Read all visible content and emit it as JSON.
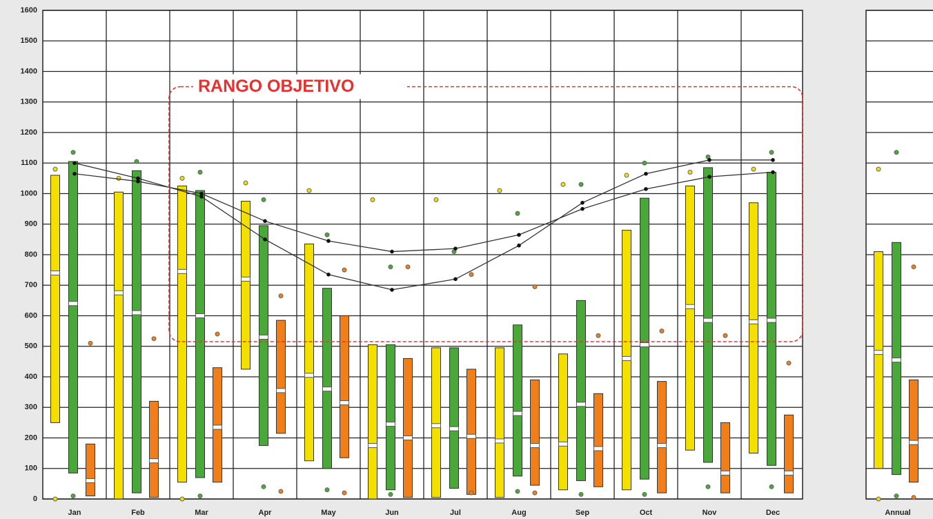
{
  "chart_data": [
    {
      "type": "box",
      "categories": [
        "Jan",
        "Feb",
        "Mar",
        "Apr",
        "May",
        "Jun",
        "Jul",
        "Aug",
        "Sep",
        "Oct",
        "Nov",
        "Dec"
      ],
      "ylim": [
        0,
        1600
      ],
      "yticks": [
        0,
        100,
        200,
        300,
        400,
        500,
        600,
        700,
        800,
        900,
        1000,
        1100,
        1200,
        1300,
        1400,
        1500,
        1600
      ],
      "grid": true,
      "series": [
        {
          "color": "#f4e000",
          "low": [
            250,
            0,
            55,
            425,
            125,
            0,
            5,
            5,
            30,
            30,
            160,
            150
          ],
          "high": [
            1060,
            1005,
            1025,
            975,
            835,
            505,
            495,
            495,
            475,
            880,
            1025,
            970
          ],
          "median": [
            740,
            675,
            745,
            720,
            405,
            175,
            240,
            190,
            180,
            460,
            630,
            580
          ],
          "outlier_high": [
            1080,
            1050,
            1050,
            1035,
            1010,
            980,
            980,
            1010,
            1030,
            1060,
            1070,
            1080
          ],
          "outlier_low": [
            0,
            null,
            0,
            null,
            null,
            null,
            null,
            null,
            null,
            null,
            null,
            null
          ]
        },
        {
          "color": "#4aa83a",
          "low": [
            85,
            20,
            70,
            175,
            100,
            30,
            35,
            75,
            60,
            65,
            120,
            110
          ],
          "high": [
            1105,
            1075,
            1010,
            895,
            690,
            505,
            495,
            570,
            650,
            985,
            1085,
            1070
          ],
          "median": [
            640,
            610,
            600,
            530,
            360,
            245,
            230,
            280,
            310,
            505,
            585,
            585
          ],
          "outlier_high": [
            1135,
            1105,
            1070,
            980,
            865,
            760,
            810,
            935,
            1030,
            1100,
            1120,
            1135
          ],
          "outlier_low": [
            10,
            null,
            10,
            40,
            30,
            15,
            null,
            25,
            15,
            15,
            40,
            40
          ]
        },
        {
          "color": "#f07f1a",
          "low": [
            10,
            5,
            55,
            215,
            135,
            5,
            15,
            45,
            40,
            20,
            20,
            20
          ],
          "high": [
            180,
            320,
            430,
            585,
            600,
            460,
            425,
            390,
            345,
            385,
            250,
            275
          ],
          "median": [
            60,
            125,
            235,
            355,
            315,
            200,
            205,
            175,
            165,
            175,
            85,
            85
          ],
          "outlier_high": [
            510,
            525,
            540,
            665,
            750,
            760,
            735,
            695,
            535,
            550,
            535,
            445
          ],
          "outlier_low": [
            null,
            null,
            null,
            25,
            20,
            null,
            20,
            20,
            null,
            null,
            null,
            null
          ]
        }
      ],
      "lines": [
        {
          "color": "#333333",
          "values": [
            1065,
            1040,
            1000,
            910,
            845,
            810,
            820,
            865,
            950,
            1015,
            1055,
            1070
          ]
        },
        {
          "color": "#333333",
          "values": [
            1100,
            1050,
            990,
            850,
            735,
            685,
            720,
            830,
            970,
            1065,
            1110,
            1110
          ]
        }
      ],
      "annotation": {
        "text": "RANGO OBJETIVO",
        "range": [
          515,
          1350
        ]
      }
    },
    {
      "type": "box",
      "categories": [
        "Annual"
      ],
      "ylim": [
        0,
        1600
      ],
      "yticks": [
        0,
        100,
        200,
        300,
        400,
        500,
        600,
        700,
        800,
        900,
        1000,
        1100,
        1200,
        1300,
        1400,
        1500,
        1600
      ],
      "grid": true,
      "series": [
        {
          "color": "#f4e000",
          "low": [
            100
          ],
          "high": [
            810
          ],
          "median": [
            480
          ],
          "outlier_high": [
            1080
          ],
          "outlier_low": [
            0
          ]
        },
        {
          "color": "#4aa83a",
          "low": [
            80
          ],
          "high": [
            840
          ],
          "median": [
            455
          ],
          "outlier_high": [
            1135
          ],
          "outlier_low": [
            10
          ]
        },
        {
          "color": "#f07f1a",
          "low": [
            55
          ],
          "high": [
            390
          ],
          "median": [
            185
          ],
          "outlier_high": [
            760
          ],
          "outlier_low": [
            5
          ]
        }
      ]
    }
  ]
}
